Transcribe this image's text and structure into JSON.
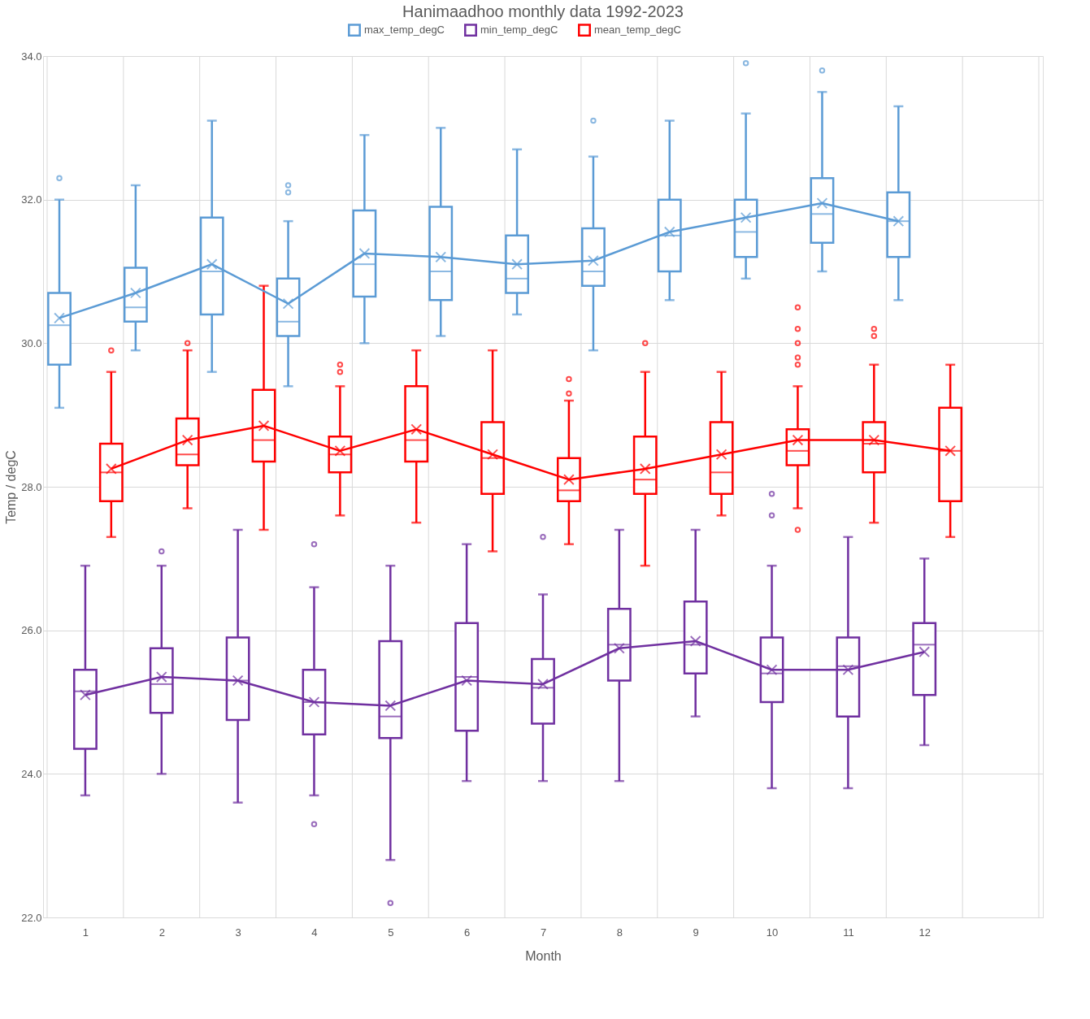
{
  "chart_data": {
    "type": "box",
    "title": "Hanimaadhoo monthly data 1992-2023",
    "xlabel": "Month",
    "ylabel": "Temp / degC",
    "categories": [
      "1",
      "2",
      "3",
      "4",
      "5",
      "6",
      "7",
      "8",
      "9",
      "10",
      "11",
      "12"
    ],
    "ylim": [
      22,
      34
    ],
    "yticks": [
      {
        "value": 22,
        "label": "22.0"
      },
      {
        "value": 24,
        "label": "24.0"
      },
      {
        "value": 26,
        "label": "26.0"
      },
      {
        "value": 28,
        "label": "28.0"
      },
      {
        "value": 30,
        "label": "30.0"
      },
      {
        "value": 32,
        "label": "32.0"
      },
      {
        "value": 34,
        "label": "34.0"
      }
    ],
    "grid": true,
    "legend": "top",
    "series": [
      {
        "name": "max_temp_degC",
        "color": "#5b9bd5",
        "boxes": [
          {
            "low": 29.1,
            "q1": 29.7,
            "median": 30.25,
            "q3": 30.7,
            "high": 32.0,
            "mean": 30.35,
            "outliers": [
              32.3
            ]
          },
          {
            "low": 29.9,
            "q1": 30.3,
            "median": 30.5,
            "q3": 31.05,
            "high": 32.2,
            "mean": 30.7
          },
          {
            "low": 29.6,
            "q1": 30.4,
            "median": 31.0,
            "q3": 31.75,
            "high": 33.1,
            "mean": 31.1
          },
          {
            "low": 29.4,
            "q1": 30.1,
            "median": 30.3,
            "q3": 30.9,
            "high": 31.7,
            "mean": 30.55,
            "outliers": [
              32.1,
              32.2
            ]
          },
          {
            "low": 30.0,
            "q1": 30.65,
            "median": 31.1,
            "q3": 31.85,
            "high": 32.9,
            "mean": 31.25
          },
          {
            "low": 30.1,
            "q1": 30.6,
            "median": 31.0,
            "q3": 31.9,
            "high": 33.0,
            "mean": 31.2
          },
          {
            "low": 30.4,
            "q1": 30.7,
            "median": 30.9,
            "q3": 31.5,
            "high": 32.7,
            "mean": 31.1
          },
          {
            "low": 29.9,
            "q1": 30.8,
            "median": 31.0,
            "q3": 31.6,
            "high": 32.6,
            "mean": 31.15,
            "outliers": [
              33.1
            ]
          },
          {
            "low": 30.6,
            "q1": 31.0,
            "median": 31.5,
            "q3": 32.0,
            "high": 33.1,
            "mean": 31.55
          },
          {
            "low": 30.9,
            "q1": 31.2,
            "median": 31.55,
            "q3": 32.0,
            "high": 33.2,
            "mean": 31.75,
            "outliers": [
              33.9
            ]
          },
          {
            "low": 31.0,
            "q1": 31.4,
            "median": 31.8,
            "q3": 32.3,
            "high": 33.5,
            "mean": 31.95,
            "outliers": [
              33.8
            ]
          },
          {
            "low": 30.6,
            "q1": 31.2,
            "median": 31.7,
            "q3": 32.1,
            "high": 33.3,
            "mean": 31.7
          }
        ]
      },
      {
        "name": "min_temp_degC",
        "color": "#7030a0",
        "boxes": [
          {
            "low": 23.7,
            "q1": 24.35,
            "median": 25.15,
            "q3": 25.45,
            "high": 26.9,
            "mean": 25.1
          },
          {
            "low": 24.0,
            "q1": 24.85,
            "median": 25.25,
            "q3": 25.75,
            "high": 26.9,
            "mean": 25.35,
            "outliers": [
              27.1
            ]
          },
          {
            "low": 23.6,
            "q1": 24.75,
            "median": 25.3,
            "q3": 25.9,
            "high": 27.4,
            "mean": 25.3
          },
          {
            "low": 23.7,
            "q1": 24.55,
            "median": 25.0,
            "q3": 25.45,
            "high": 26.6,
            "mean": 25.0,
            "outliers": [
              27.2,
              23.3
            ]
          },
          {
            "low": 22.8,
            "q1": 24.5,
            "median": 24.8,
            "q3": 25.85,
            "high": 26.9,
            "mean": 24.95,
            "outliers": [
              22.2
            ]
          },
          {
            "low": 23.9,
            "q1": 24.6,
            "median": 25.35,
            "q3": 26.1,
            "high": 27.2,
            "mean": 25.3
          },
          {
            "low": 23.9,
            "q1": 24.7,
            "median": 25.2,
            "q3": 25.6,
            "high": 26.5,
            "mean": 25.25,
            "outliers": [
              27.3
            ]
          },
          {
            "low": 23.9,
            "q1": 25.3,
            "median": 25.8,
            "q3": 26.3,
            "high": 27.4,
            "mean": 25.75
          },
          {
            "low": 24.8,
            "q1": 25.4,
            "median": 25.8,
            "q3": 26.4,
            "high": 27.4,
            "mean": 25.85
          },
          {
            "low": 23.8,
            "q1": 25.0,
            "median": 25.4,
            "q3": 25.9,
            "high": 26.9,
            "mean": 25.45,
            "outliers": [
              27.6,
              27.9
            ]
          },
          {
            "low": 23.8,
            "q1": 24.8,
            "median": 25.5,
            "q3": 25.9,
            "high": 27.3,
            "mean": 25.45
          },
          {
            "low": 24.4,
            "q1": 25.1,
            "median": 25.8,
            "q3": 26.1,
            "high": 27.0,
            "mean": 25.7
          }
        ]
      },
      {
        "name": "mean_temp_degC",
        "color": "#ff0000",
        "boxes": [
          {
            "low": 27.3,
            "q1": 27.8,
            "median": 28.2,
            "q3": 28.6,
            "high": 29.6,
            "mean": 28.25,
            "outliers": [
              29.9
            ]
          },
          {
            "low": 27.7,
            "q1": 28.3,
            "median": 28.45,
            "q3": 28.95,
            "high": 29.9,
            "mean": 28.65,
            "outliers": [
              30.0
            ]
          },
          {
            "low": 27.4,
            "q1": 28.35,
            "median": 28.65,
            "q3": 29.35,
            "high": 30.8,
            "mean": 28.85
          },
          {
            "low": 27.6,
            "q1": 28.2,
            "median": 28.45,
            "q3": 28.7,
            "high": 29.4,
            "mean": 28.5,
            "outliers": [
              29.6,
              29.7
            ]
          },
          {
            "low": 27.5,
            "q1": 28.35,
            "median": 28.65,
            "q3": 29.4,
            "high": 29.9,
            "mean": 28.8
          },
          {
            "low": 27.1,
            "q1": 27.9,
            "median": 28.4,
            "q3": 28.9,
            "high": 29.9,
            "mean": 28.45
          },
          {
            "low": 27.2,
            "q1": 27.8,
            "median": 27.95,
            "q3": 28.4,
            "high": 29.2,
            "mean": 28.1,
            "outliers": [
              29.3,
              29.5
            ]
          },
          {
            "low": 26.9,
            "q1": 27.9,
            "median": 28.1,
            "q3": 28.7,
            "high": 29.6,
            "mean": 28.25,
            "outliers": [
              30.0
            ]
          },
          {
            "low": 27.6,
            "q1": 27.9,
            "median": 28.2,
            "q3": 28.9,
            "high": 29.6,
            "mean": 28.45
          },
          {
            "low": 27.7,
            "q1": 28.3,
            "median": 28.5,
            "q3": 28.8,
            "high": 29.4,
            "mean": 28.65,
            "outliers": [
              29.7,
              29.8,
              30.0,
              30.2,
              30.5,
              27.4
            ]
          },
          {
            "low": 27.5,
            "q1": 28.2,
            "median": 28.6,
            "q3": 28.9,
            "high": 29.7,
            "mean": 28.65,
            "outliers": [
              30.1,
              30.2
            ]
          },
          {
            "low": 27.3,
            "q1": 27.8,
            "median": 28.5,
            "q3": 29.1,
            "high": 29.7,
            "mean": 28.5
          }
        ]
      },
      {
        "type": "line",
        "color": "#5b9bd5",
        "values": [
          30.35,
          30.7,
          31.1,
          30.55,
          31.25,
          31.2,
          31.1,
          31.15,
          31.55,
          31.75,
          31.95,
          31.7
        ]
      },
      {
        "type": "line",
        "color": "#7030a0",
        "values": [
          25.1,
          25.35,
          25.3,
          25.0,
          24.95,
          25.3,
          25.25,
          25.75,
          25.85,
          25.45,
          25.45,
          25.7
        ]
      },
      {
        "type": "line",
        "color": "#ff0000",
        "values": [
          28.25,
          28.65,
          28.85,
          28.5,
          28.8,
          28.45,
          28.1,
          28.25,
          28.45,
          28.65,
          28.65,
          28.5
        ]
      }
    ]
  }
}
